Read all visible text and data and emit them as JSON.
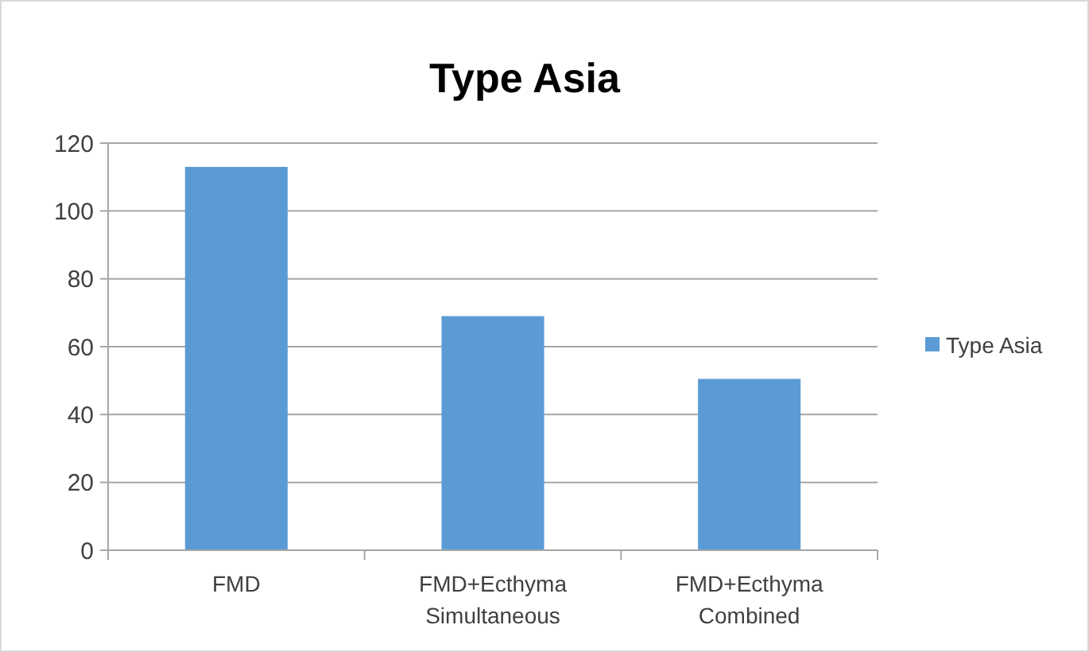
{
  "chart_data": {
    "type": "bar",
    "title": "Type Asia",
    "categories": [
      "FMD",
      "FMD+Ecthyma Simultaneous",
      "FMD+Ecthyma Combined"
    ],
    "series": [
      {
        "name": "Type Asia",
        "color": "#5b9bd5",
        "values": [
          113,
          69,
          50.5
        ]
      }
    ],
    "ylim": [
      0,
      120
    ],
    "yticks": [
      0,
      20,
      40,
      60,
      80,
      100,
      120
    ],
    "grid": "y",
    "legend": "right"
  }
}
